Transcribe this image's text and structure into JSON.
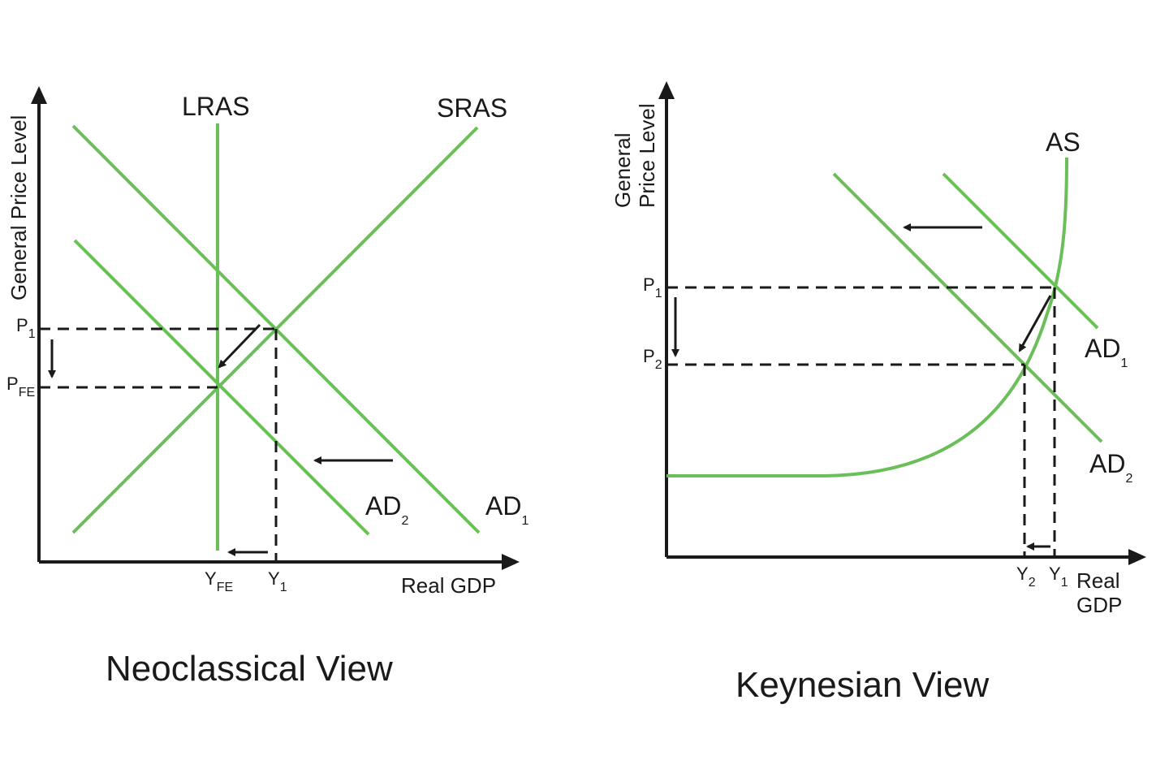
{
  "panels": [
    {
      "title": "Neoclassical View",
      "y_axis_label": "General Price Level",
      "x_axis_label": "Real GDP",
      "curves": [
        {
          "id": "LRAS",
          "label": "LRAS",
          "sub": ""
        },
        {
          "id": "SRAS",
          "label": "SRAS",
          "sub": ""
        },
        {
          "id": "AD1",
          "label": "AD",
          "sub": "1"
        },
        {
          "id": "AD2",
          "label": "AD",
          "sub": "2"
        }
      ],
      "price_ticks": [
        {
          "main": "P",
          "sub": "1"
        },
        {
          "main": "P",
          "sub": "FE"
        }
      ],
      "output_ticks": [
        {
          "main": "Y",
          "sub": "FE"
        },
        {
          "main": "Y",
          "sub": "1"
        }
      ]
    },
    {
      "title": "Keynesian View",
      "y_axis_label_lines": [
        "General",
        "Price Level"
      ],
      "x_axis_label_lines": [
        "Real",
        "GDP"
      ],
      "curves": [
        {
          "id": "AS",
          "label": "AS",
          "sub": ""
        },
        {
          "id": "AD1",
          "label": "AD",
          "sub": "1"
        },
        {
          "id": "AD2",
          "label": "AD",
          "sub": "2"
        }
      ],
      "price_ticks": [
        {
          "main": "P",
          "sub": "1"
        },
        {
          "main": "P",
          "sub": "2"
        }
      ],
      "output_ticks": [
        {
          "main": "Y",
          "sub": "2"
        },
        {
          "main": "Y",
          "sub": "1"
        }
      ]
    }
  ],
  "colors": {
    "curve": "#6bbf59",
    "axis": "#1a1a1a"
  }
}
